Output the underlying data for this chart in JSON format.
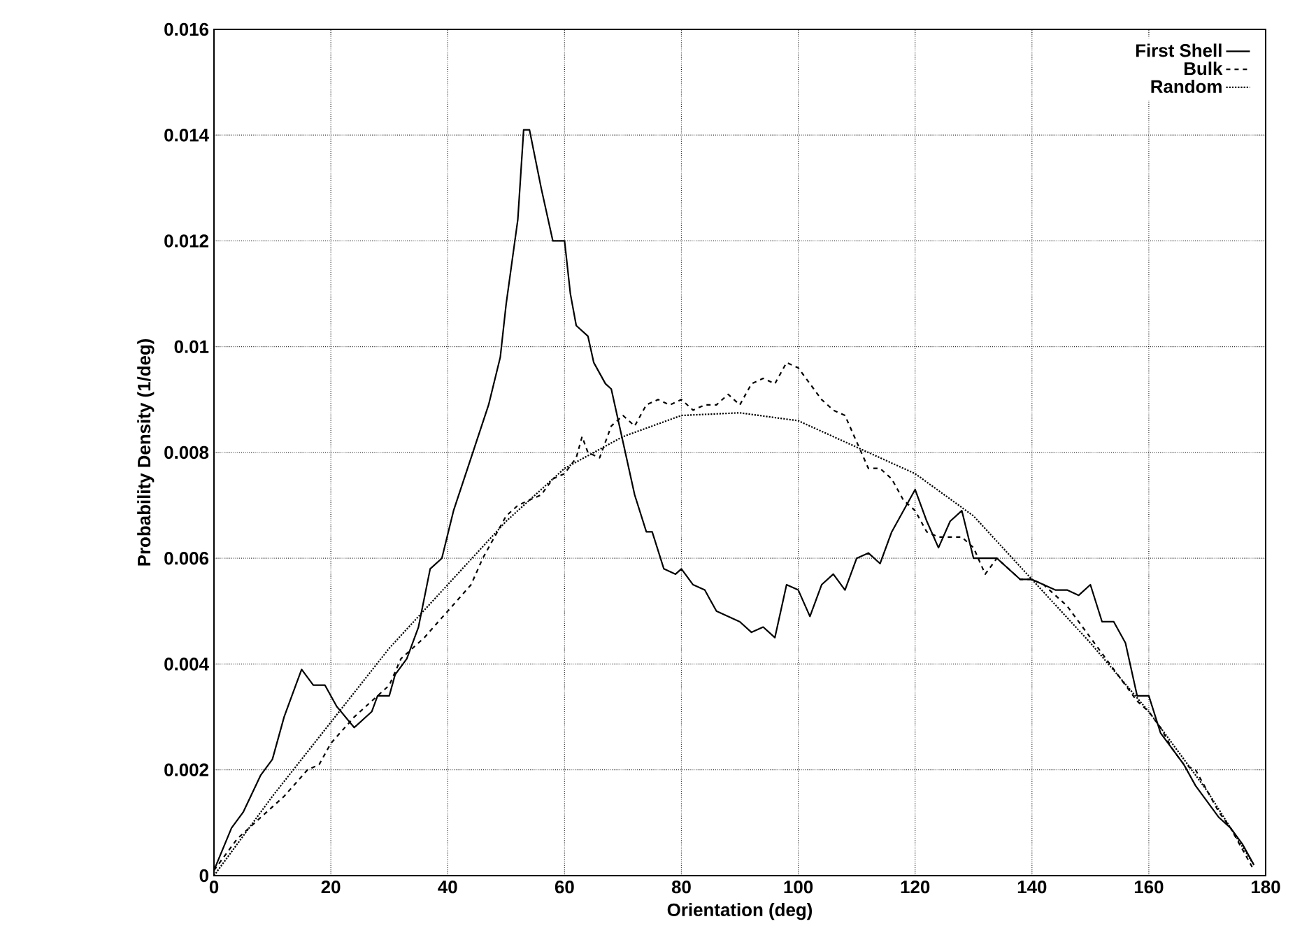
{
  "chart_data": {
    "type": "line",
    "xlabel": "Orientation (deg)",
    "ylabel": "Probability Density (1/deg)",
    "xlim": [
      0,
      180
    ],
    "ylim": [
      0,
      0.016
    ],
    "xticks": [
      0,
      20,
      40,
      60,
      80,
      100,
      120,
      140,
      160,
      180
    ],
    "yticks": [
      0,
      0.002,
      0.004,
      0.006,
      0.008,
      0.01,
      0.012,
      0.014,
      0.016
    ],
    "grid": true,
    "legend": "top right",
    "series": [
      {
        "name": "First Shell",
        "color": "#000000",
        "line_style": "solid",
        "x": [
          0,
          3,
          5,
          8,
          10,
          12,
          14,
          15,
          17,
          19,
          21,
          24,
          27,
          28,
          30,
          31,
          33,
          35,
          37,
          39,
          41,
          44,
          47,
          49,
          50,
          52,
          53,
          54,
          56,
          58,
          60,
          61,
          62,
          64,
          65,
          67,
          68,
          70,
          72,
          74,
          75,
          77,
          79,
          80,
          82,
          84,
          86,
          88,
          90,
          92,
          94,
          96,
          98,
          100,
          102,
          104,
          106,
          108,
          110,
          112,
          114,
          116,
          118,
          120,
          122,
          124,
          126,
          128,
          130,
          132,
          134,
          136,
          138,
          140,
          142,
          144,
          146,
          148,
          150,
          152,
          154,
          156,
          158,
          160,
          162,
          164,
          166,
          168,
          170,
          172,
          174,
          176,
          178
        ],
        "values": [
          0.0001,
          0.0009,
          0.0012,
          0.0019,
          0.0022,
          0.003,
          0.0036,
          0.0039,
          0.0036,
          0.0036,
          0.0032,
          0.0028,
          0.0031,
          0.0034,
          0.0034,
          0.0038,
          0.0041,
          0.0047,
          0.0058,
          0.006,
          0.0069,
          0.0079,
          0.0089,
          0.0098,
          0.0108,
          0.0124,
          0.0141,
          0.0141,
          0.013,
          0.012,
          0.012,
          0.011,
          0.0104,
          0.0102,
          0.0097,
          0.0093,
          0.0092,
          0.0082,
          0.0072,
          0.0065,
          0.0065,
          0.0058,
          0.0057,
          0.0058,
          0.0055,
          0.0054,
          0.005,
          0.0049,
          0.0048,
          0.0046,
          0.0047,
          0.0045,
          0.0055,
          0.0054,
          0.0049,
          0.0055,
          0.0057,
          0.0054,
          0.006,
          0.0061,
          0.0059,
          0.0065,
          0.0069,
          0.0073,
          0.0067,
          0.0062,
          0.0067,
          0.0069,
          0.006,
          0.006,
          0.006,
          0.0058,
          0.0056,
          0.0056,
          0.0055,
          0.0054,
          0.0054,
          0.0053,
          0.0055,
          0.0048,
          0.0048,
          0.0044,
          0.0034,
          0.0034,
          0.0027,
          0.0024,
          0.0021,
          0.0017,
          0.0014,
          0.0011,
          0.0009,
          0.0006,
          0.0002
        ]
      },
      {
        "name": "Bulk",
        "color": "#000000",
        "line_style": "dashed",
        "x": [
          0,
          4,
          8,
          12,
          16,
          18,
          20,
          24,
          28,
          30,
          32,
          36,
          40,
          44,
          46,
          48,
          50,
          52,
          54,
          56,
          58,
          60,
          62,
          63,
          64,
          66,
          68,
          70,
          72,
          74,
          76,
          78,
          80,
          82,
          84,
          86,
          88,
          90,
          92,
          94,
          96,
          98,
          100,
          102,
          104,
          106,
          108,
          110,
          112,
          114,
          116,
          118,
          120,
          122,
          124,
          126,
          128,
          130,
          132,
          134,
          136,
          138,
          140,
          142,
          144,
          146,
          148,
          150,
          152,
          154,
          156,
          158,
          160,
          162,
          164,
          166,
          168,
          170,
          172,
          174,
          176,
          178
        ],
        "values": [
          0.0001,
          0.0007,
          0.0011,
          0.0015,
          0.002,
          0.0021,
          0.0025,
          0.003,
          0.0034,
          0.0036,
          0.0041,
          0.0045,
          0.005,
          0.0055,
          0.006,
          0.0064,
          0.0068,
          0.007,
          0.0071,
          0.0072,
          0.0075,
          0.0076,
          0.0079,
          0.0083,
          0.008,
          0.0079,
          0.0085,
          0.0087,
          0.0085,
          0.0089,
          0.009,
          0.0089,
          0.009,
          0.0088,
          0.0089,
          0.0089,
          0.0091,
          0.0089,
          0.0093,
          0.0094,
          0.0093,
          0.0097,
          0.0096,
          0.0093,
          0.009,
          0.0088,
          0.0087,
          0.0082,
          0.0077,
          0.0077,
          0.0075,
          0.0071,
          0.0069,
          0.0065,
          0.0064,
          0.0064,
          0.0064,
          0.0062,
          0.0057,
          0.006,
          0.0058,
          0.0056,
          0.0056,
          0.0055,
          0.0053,
          0.0051,
          0.0048,
          0.0045,
          0.0042,
          0.0039,
          0.0036,
          0.0033,
          0.0031,
          0.0028,
          0.0024,
          0.0021,
          0.002,
          0.0016,
          0.0012,
          0.0009,
          0.0005,
          0.0001
        ]
      },
      {
        "name": "Random",
        "color": "#000000",
        "line_style": "dotted",
        "x": [
          0,
          10,
          20,
          30,
          40,
          50,
          60,
          70,
          80,
          90,
          100,
          110,
          120,
          130,
          140,
          150,
          160,
          170,
          178
        ],
        "values": [
          0.0,
          0.0015,
          0.0029,
          0.0043,
          0.0055,
          0.0067,
          0.0077,
          0.0083,
          0.0087,
          0.00875,
          0.0086,
          0.0081,
          0.0076,
          0.0068,
          0.0056,
          0.0044,
          0.0031,
          0.0016,
          0.0002
        ]
      }
    ]
  }
}
